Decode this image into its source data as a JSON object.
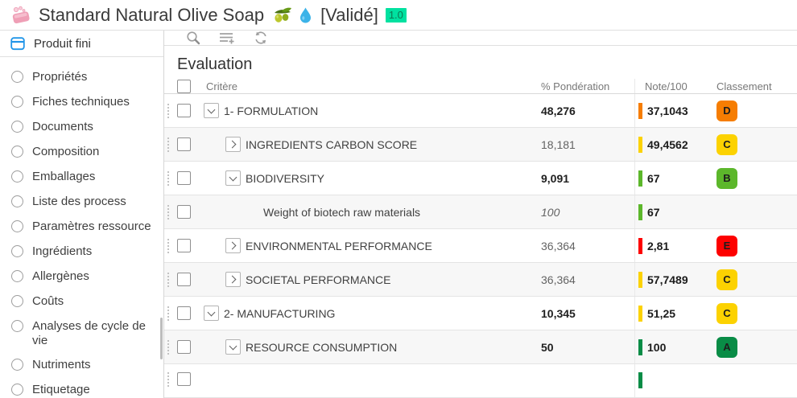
{
  "header": {
    "title": "Standard Natural Olive Soap",
    "status": "[Validé]",
    "version": "1.0",
    "version_badge_bg": "#00E1A0",
    "version_badge_text_color": "#0B7A52",
    "icons": [
      "soap-icon",
      "olive-icon",
      "droplet-icon"
    ]
  },
  "sidebar": {
    "root_label": "Produit fini",
    "items": [
      "Propriétés",
      "Fiches techniques",
      "Documents",
      "Composition",
      "Emballages",
      "Liste des process",
      "Paramètres ressource",
      "Ingrédients",
      "Allergènes",
      "Coûts",
      "Analyses de cycle de vie",
      "Nutriments",
      "Etiquetage"
    ]
  },
  "toolbar": {
    "icons": [
      "search-icon",
      "add-row-icon",
      "refresh-icon"
    ]
  },
  "evaluation": {
    "title": "Evaluation",
    "columns": {
      "criterion": "Critère",
      "weight": "% Pondération",
      "score": "Note/100",
      "ranking": "Classement"
    },
    "grade_colors": {
      "A": "#098C46",
      "B": "#5CB72B",
      "C": "#FCD201",
      "D": "#F67D02",
      "E": "#FD0100"
    },
    "rows": [
      {
        "label": "1- FORMULATION",
        "indent": 1,
        "toggle": "expanded",
        "weight": "48,276",
        "weight_style": "bold",
        "score": "37,1043",
        "color": "#F67D02",
        "grade": "D"
      },
      {
        "label": "INGREDIENTS CARBON SCORE",
        "indent": 2,
        "toggle": "collapsed",
        "weight": "18,181",
        "weight_style": "normal",
        "score": "49,4562",
        "color": "#FCD201",
        "grade": "C"
      },
      {
        "label": "BIODIVERSITY",
        "indent": 2,
        "toggle": "expanded",
        "weight": "9,091",
        "weight_style": "bold",
        "score": "67",
        "color": "#5CB72B",
        "grade": "B"
      },
      {
        "label": "Weight of biotech raw materials",
        "indent": 3,
        "toggle": "none",
        "weight": "100",
        "weight_style": "italic",
        "score": "67",
        "color": "#5CB72B",
        "grade": null
      },
      {
        "label": "ENVIRONMENTAL PERFORMANCE",
        "indent": 2,
        "toggle": "collapsed",
        "weight": "36,364",
        "weight_style": "normal",
        "score": "2,81",
        "color": "#FD0100",
        "grade": "E"
      },
      {
        "label": "SOCIETAL PERFORMANCE",
        "indent": 2,
        "toggle": "collapsed",
        "weight": "36,364",
        "weight_style": "normal",
        "score": "57,7489",
        "color": "#FCD201",
        "grade": "C"
      },
      {
        "label": "2- MANUFACTURING",
        "indent": 1,
        "toggle": "expanded",
        "weight": "10,345",
        "weight_style": "bold",
        "score": "51,25",
        "color": "#FCD201",
        "grade": "C"
      },
      {
        "label": "RESOURCE CONSUMPTION",
        "indent": 2,
        "toggle": "expanded",
        "weight": "50",
        "weight_style": "bold",
        "score": "100",
        "color": "#098C46",
        "grade": "A"
      },
      {
        "label": "",
        "indent": 2,
        "toggle": "none",
        "weight": "",
        "weight_style": "normal",
        "score": "",
        "color": "#098C46",
        "grade": null,
        "partial": true
      }
    ]
  }
}
